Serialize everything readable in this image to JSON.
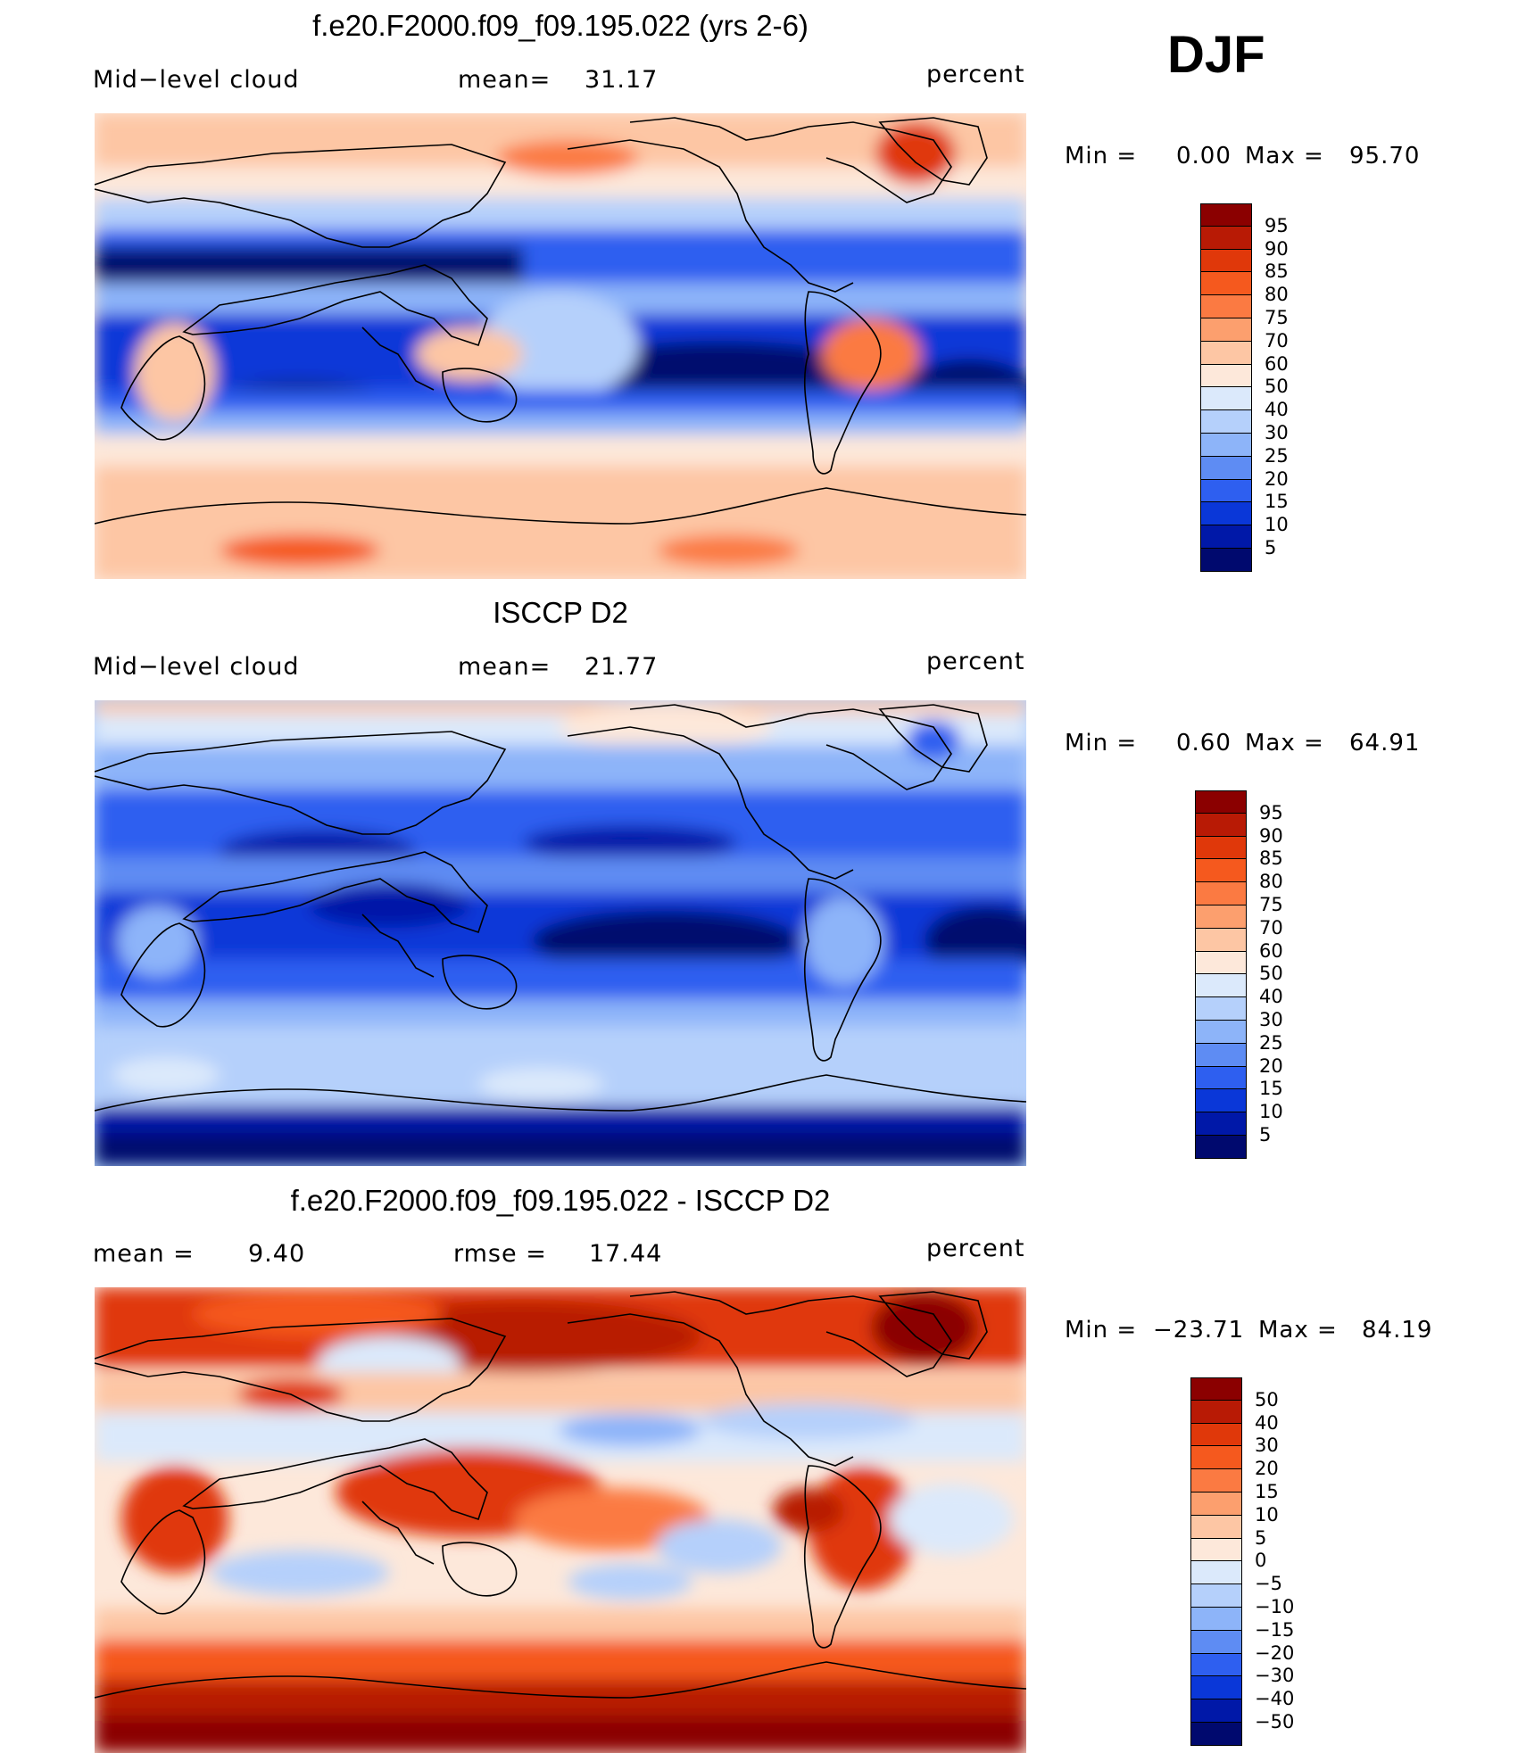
{
  "season": "DJF",
  "panels": [
    {
      "title": "f.e20.F2000.f09_f09.195.022 (yrs 2-6)",
      "left_label": "Mid−level cloud",
      "center_label": "mean=",
      "center_value": "31.17",
      "units": "percent",
      "min_label": "Min =",
      "min_value": "0.00",
      "max_label": "Max =",
      "max_value": "95.70"
    },
    {
      "title": "ISCCP D2",
      "left_label": "Mid−level cloud",
      "center_label": "mean=",
      "center_value": "21.77",
      "units": "percent",
      "min_label": "Min =",
      "min_value": "0.60",
      "max_label": "Max =",
      "max_value": "64.91"
    },
    {
      "title": "f.e20.F2000.f09_f09.195.022 - ISCCP D2",
      "left_label": "mean =",
      "left_value": "9.40",
      "center_label": "rmse =",
      "center_value": "17.44",
      "units": "percent",
      "min_label": "Min =",
      "min_value": "−23.71",
      "max_label": "Max =",
      "max_value": "84.19"
    }
  ],
  "chart_data": [
    {
      "type": "heatmap",
      "title": "f.e20.F2000.f09_f09.195.022 (yrs 2-6)",
      "variable": "Mid-level cloud",
      "units": "percent",
      "mean": 31.17,
      "min": 0.0,
      "max": 95.7,
      "colorbar_levels": [
        95,
        90,
        85,
        80,
        75,
        70,
        60,
        50,
        40,
        30,
        25,
        20,
        15,
        10,
        5
      ],
      "colorbar_colors": [
        "#8b0000",
        "#b81a05",
        "#e0380a",
        "#f5591e",
        "#fb7a42",
        "#fc9f6e",
        "#fdc6a4",
        "#fde8da",
        "#dbe9fb",
        "#b5d0fb",
        "#8db4f9",
        "#5e8cf3",
        "#2e5ff0",
        "#0a37d8",
        "#0018a8",
        "#00096e"
      ]
    },
    {
      "type": "heatmap",
      "title": "ISCCP D2",
      "variable": "Mid-level cloud",
      "units": "percent",
      "mean": 21.77,
      "min": 0.6,
      "max": 64.91,
      "colorbar_levels": [
        95,
        90,
        85,
        80,
        75,
        70,
        60,
        50,
        40,
        30,
        25,
        20,
        15,
        10,
        5
      ],
      "colorbar_colors": [
        "#8b0000",
        "#b81a05",
        "#e0380a",
        "#f5591e",
        "#fb7a42",
        "#fc9f6e",
        "#fdc6a4",
        "#fde8da",
        "#dbe9fb",
        "#b5d0fb",
        "#8db4f9",
        "#5e8cf3",
        "#2e5ff0",
        "#0a37d8",
        "#0018a8",
        "#00096e"
      ]
    },
    {
      "type": "heatmap",
      "title": "f.e20.F2000.f09_f09.195.022 - ISCCP D2",
      "units": "percent",
      "mean": 9.4,
      "rmse": 17.44,
      "min": -23.71,
      "max": 84.19,
      "colorbar_levels": [
        "50",
        "40",
        "30",
        "20",
        "15",
        "10",
        "5",
        "0",
        "−5",
        "−10",
        "−15",
        "−20",
        "−30",
        "−40",
        "−50"
      ],
      "colorbar_colors": [
        "#8b0000",
        "#b81a05",
        "#e0380a",
        "#f5591e",
        "#fb7a42",
        "#fc9f6e",
        "#fdc6a4",
        "#fde8da",
        "#dbe9fb",
        "#b5d0fb",
        "#8db4f9",
        "#5e8cf3",
        "#2e5ff0",
        "#0a37d8",
        "#0018a8",
        "#00096e"
      ]
    }
  ]
}
